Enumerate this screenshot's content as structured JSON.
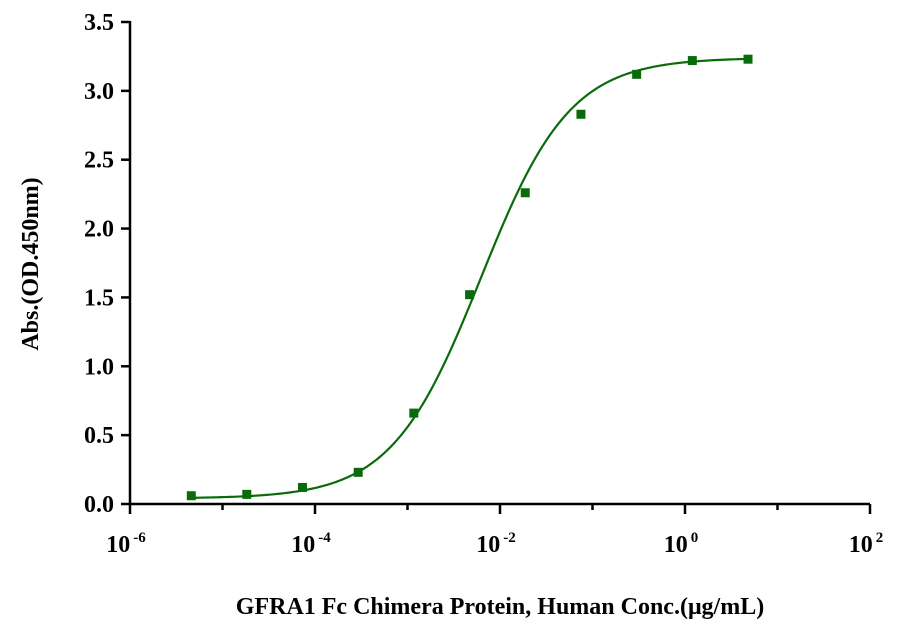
{
  "chart_data": {
    "type": "scatter",
    "title": "",
    "xlabel": "GFRA1 Fc Chimera Protein, Human Conc.(μg/mL)",
    "ylabel": "Abs.(OD.450nm)",
    "x_scale": "log10",
    "xlim": [
      1e-06,
      100
    ],
    "ylim": [
      0,
      3.5
    ],
    "x_ticks": [
      {
        "base": "10",
        "exp": "-6"
      },
      {
        "base": "10",
        "exp": "-4"
      },
      {
        "base": "10",
        "exp": "-2"
      },
      {
        "base": "10",
        "exp": "0"
      },
      {
        "base": "10",
        "exp": "2"
      }
    ],
    "y_ticks": [
      "0.0",
      "0.5",
      "1.0",
      "1.5",
      "2.0",
      "2.5",
      "3.0",
      "3.5"
    ],
    "grid": false,
    "color": "#0a6b0a",
    "series": [
      {
        "marker": "square",
        "x": [
          4.6e-06,
          1.83e-05,
          7.32e-05,
          0.000293,
          0.00117,
          0.00469,
          0.01875,
          0.075,
          0.3,
          1.2,
          4.8
        ],
        "y": [
          0.06,
          0.07,
          0.12,
          0.23,
          0.66,
          1.52,
          2.26,
          2.83,
          3.12,
          3.22,
          3.23
        ]
      }
    ],
    "fit_curve": {
      "model": "4PL",
      "bottom": 0.04,
      "top": 3.24,
      "ec50": 0.0062,
      "hill": 0.9
    }
  }
}
